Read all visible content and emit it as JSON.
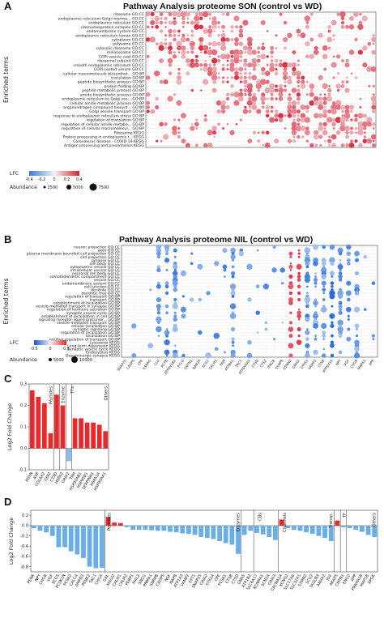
{
  "figure": {
    "panels": [
      "A",
      "B",
      "C",
      "D"
    ]
  },
  "chart_data": [
    {
      "type": "scatter",
      "panel": "A",
      "title": "Pathway Analysis proteome SON (control vs WD)",
      "ylabel": "Enriched terms",
      "terms": [
        "ribosome GO:CC",
        "endoplasmic reticulum-Golgi interme... GO:CC",
        "endoplasmic reticulum GO:CC",
        "ribonucleoprotein complex GO:CC",
        "endomembrane system GO:CC",
        "endoplasmic reticulum lumen GO:CC",
        "cytoplasm GO:CC",
        "polysome GO:CC",
        "cytosolic ribosome GO:CC",
        "melanosome GO:CC",
        "COPI vesicle coat GO:CC",
        "ribosomal subunit GO:CC",
        "smooth endoplasmic reticulum GO:CC",
        "COPI-coated vesicle GO:CC",
        "cellular macromolecule biosynthet... GO:BP",
        "translation GO:BP",
        "peptide biosynthetic process GO:BP",
        "protein folding GO:BP",
        "peptide metabolic process GO:BP",
        "amide biosynthetic process GO:BP",
        "endoplasmic reticulum to Golgi ves... GO:BP",
        "cellular amide metabolic process GO:BP",
        "organonitrogen compound biosynt... GO:BP",
        "Golgi vesicle transport GO:BP",
        "response to endoplasmic reticulum stress GO:BP",
        "regulation of translation GO:BP",
        "regulation of cellular amide metabo... GO:BP",
        "regulation of cellular macromolecul... GO:BP",
        "Ribosome KEGG",
        "Protein processing in endoplasmic r... KEGG",
        "Coronavirus disease - COVID-19 KEGG",
        "Antigen processing and presentation KEGG"
      ],
      "genes_count": 52,
      "legend": {
        "lfc_label": "LFC",
        "lfc_ticks": [
          "-0.4",
          "-0.2",
          "0",
          "0.2",
          "0.4"
        ],
        "abundance_label": "Abundance",
        "abundance_values": [
          "2500",
          "5000",
          "7500"
        ]
      }
    },
    {
      "type": "scatter",
      "panel": "B",
      "title": "Pathway Analysis proteome NIL (control vs WD)",
      "ylabel": "Enriched terms",
      "terms": [
        "neuron projection GO:CC",
        "axon GO:CC",
        "plasma membrane bounded cell projection GO:CC",
        "cell projection GO:CC",
        "synapse GO:CC",
        "cell body GO:CC",
        "cytoplasmic vesicle GO:CC",
        "intracellular vesicle GO:CC",
        "neuronal cell body GO:CC",
        "somatodendritic compartment GO:CC",
        "vesicle GO:CC",
        "endomembrane system GO:CC",
        "cell junction GO:CC",
        "dendrite GO:CC",
        "dendritic tree GO:CC",
        "regulation of transport GO:BP",
        "transport GO:BP",
        "establishment of localization GO:BP",
        "vesicle-mediated transport in synapse GO:BP",
        "regulation of hormone secretion GO:BP",
        "synaptic vesicle cycle GO:BP",
        "establishment of localization in cell GO:BP",
        "signaling receptor ligand precursor... GO:BP",
        "vesicle-mediated transport GO:BP",
        "cellular localization GO:BP",
        "synaptic signaling GO:BP",
        "regulation of localization GO:BP",
        "localization GO:BP",
        "positive regulation of transport GO:BP",
        "Lysosome KEGG",
        "Long-term depression KEGG",
        "Synaptic vesicle cycle KEGG",
        "Endocytosis KEGG",
        "Dopaminergic synapse KEGG"
      ],
      "genes": [
        "SNAP25",
        "CADPS",
        "CPE",
        "ESRRG",
        "CLU",
        "ACTB",
        "ATP6V1B2",
        "PCLO",
        "CNTN1",
        "RAB3A",
        "SCG2",
        "CALM1",
        "PAM",
        "ATP8A1",
        "TAC1",
        "ATP6V0A1",
        "CTSD",
        "CTSZ",
        "ITM2B",
        "SYNPR",
        "STMN2",
        "GRIA2",
        "GRIA3",
        "VAMP2",
        "CTSB",
        "ATP6V1A",
        "NPY",
        "VGF",
        "CHGB",
        "MAPK1",
        "APP"
      ],
      "legend": {
        "lfc_label": "LFC",
        "lfc_ticks": [
          "-0.5",
          "0",
          "0.5"
        ],
        "abundance_label": "Abundance",
        "abundance_values": [
          "5000",
          "10000"
        ]
      }
    },
    {
      "type": "bar",
      "panel": "C",
      "ylabel": "Log2 Fold Change",
      "ylim": [
        -0.1,
        0.3
      ],
      "yticks": [
        "-0.1",
        "0.0",
        "0.1",
        "0.2",
        "0.3"
      ],
      "categories": [
        "PDYN",
        "AVP",
        "COL6A2",
        "GDI2",
        "CTSD",
        "HSPA2",
        "GRIA2",
        "TRH",
        "HSP90AB1",
        "HSP90B1",
        "SERPINH1",
        "HSPA1A",
        "HSP90AA1"
      ],
      "values": [
        0.27,
        0.24,
        0.21,
        0.07,
        0.25,
        0.2,
        -0.06,
        0.14,
        0.14,
        0.12,
        0.12,
        0.11,
        0.08
      ],
      "groups": [
        "Peptides",
        "Enzyme",
        "TFs",
        "Others"
      ],
      "colors": {
        "up": "#e8292b",
        "down": "#8bbbe8"
      }
    },
    {
      "type": "bar",
      "panel": "D",
      "ylabel": "Log2 Fold Change",
      "ylim": [
        -0.9,
        0.3
      ],
      "yticks": [
        "-0.8",
        "-0.6",
        "-0.4",
        "-0.2",
        "0.0",
        "0.2"
      ],
      "categories": [
        "PENK",
        "NPY",
        "CHGB",
        "VGF",
        "SCG5",
        "PCSK1N",
        "PCSK2",
        "CALCA",
        "AMPD1",
        "PENK2",
        "TAC1",
        "CHGA",
        "GAL",
        "MAGI2",
        "CALM1",
        "CALM2",
        "PEBP1",
        "MAL2",
        "SNCG",
        "PNMA1",
        "SNRPB",
        "CADPS",
        "NSF",
        "NAPB",
        "ATP1A3",
        "VAMP2",
        "SYT1",
        "SNAP25",
        "GRIA2",
        "STX1A",
        "CPE",
        "PCSK1",
        "CTSB",
        "CTSD",
        "GNAS",
        "ATP1B2",
        "SLC6A17",
        "KCNMA1",
        "SCN2A",
        "GRIA3",
        "CACNA1A",
        "KCNQ2",
        "SLC17A6",
        "SLC32A1",
        "STMN2",
        "SCG2",
        "TAGLN3",
        "ANXA2",
        "ID2",
        "AKAP5",
        "CNTN1",
        "ENO2",
        "APP",
        "PRKAR1B",
        "MAP1B",
        "APOE"
      ],
      "values": [
        -0.05,
        -0.1,
        -0.13,
        -0.2,
        -0.42,
        -0.42,
        -0.5,
        -0.56,
        -0.63,
        -0.8,
        -0.83,
        -0.82,
        0.17,
        0.06,
        0.05,
        -0.03,
        -0.08,
        -0.08,
        -0.08,
        -0.09,
        -0.1,
        -0.1,
        -0.12,
        -0.13,
        -0.15,
        -0.16,
        -0.18,
        -0.22,
        -0.24,
        -0.26,
        -0.3,
        -0.34,
        -0.37,
        -0.55,
        -0.18,
        -0.1,
        -0.14,
        -0.17,
        -0.22,
        -0.28,
        0.12,
        -0.05,
        -0.08,
        -0.1,
        -0.13,
        -0.16,
        -0.2,
        -0.24,
        -0.3,
        0.1,
        -0.03,
        -0.05,
        -0.08,
        -0.12,
        -0.18,
        -0.22
      ],
      "groups": [
        "Peptides",
        "Enzymes",
        "CBs",
        "Channels",
        "Transp.",
        "TF",
        "Others"
      ],
      "colors": {
        "up": "#e8292b",
        "down": "#6aaee8"
      }
    }
  ]
}
